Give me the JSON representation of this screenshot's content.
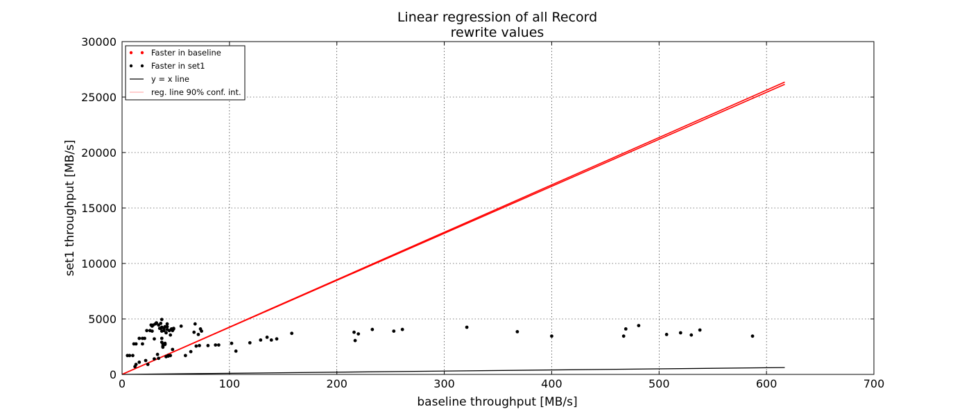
{
  "chart_data": {
    "type": "scatter",
    "title": [
      "Linear regression of all Record",
      "rewrite values"
    ],
    "xlabel": "baseline throughput [MB/s]",
    "ylabel": "set1 throughput [MB/s]",
    "xlim": [
      0,
      700
    ],
    "ylim": [
      0,
      30000
    ],
    "xticks": [
      0,
      100,
      200,
      300,
      400,
      500,
      600,
      700
    ],
    "yticks": [
      0,
      5000,
      10000,
      15000,
      20000,
      25000,
      30000
    ],
    "grid": true,
    "legend_position": "top-left",
    "legend": [
      {
        "label": "Faster in baseline",
        "kind": "points",
        "color": "#ff0000"
      },
      {
        "label": "Faster in set1",
        "kind": "points",
        "color": "#000000"
      },
      {
        "label": "y = x line",
        "kind": "line",
        "color": "#000000"
      },
      {
        "label": "reg. line 90% conf. int.",
        "kind": "line",
        "color": "#ffb0b0"
      }
    ],
    "series": [
      {
        "name": "Faster in baseline",
        "color": "#ff0000",
        "points": []
      },
      {
        "name": "Faster in set1",
        "color": "#000000",
        "points": [
          [
            5,
            1700
          ],
          [
            7,
            1700
          ],
          [
            10,
            1700
          ],
          [
            11,
            2750
          ],
          [
            13,
            2750
          ],
          [
            12,
            700
          ],
          [
            13,
            900
          ],
          [
            16,
            1100
          ],
          [
            16,
            3250
          ],
          [
            19,
            3250
          ],
          [
            19,
            2750
          ],
          [
            21,
            3250
          ],
          [
            22,
            1250
          ],
          [
            23,
            3950
          ],
          [
            24,
            900
          ],
          [
            26,
            3950
          ],
          [
            27,
            4450
          ],
          [
            28,
            4350
          ],
          [
            28,
            3900
          ],
          [
            29,
            4450
          ],
          [
            30,
            3200
          ],
          [
            30,
            1400
          ],
          [
            31,
            4550
          ],
          [
            32,
            4650
          ],
          [
            33,
            1800
          ],
          [
            34,
            1450
          ],
          [
            34,
            4450
          ],
          [
            35,
            4150
          ],
          [
            36,
            4600
          ],
          [
            36,
            4150
          ],
          [
            37,
            4950
          ],
          [
            37,
            4250
          ],
          [
            37,
            3900
          ],
          [
            37,
            3250
          ],
          [
            37,
            2900
          ],
          [
            38,
            2750
          ],
          [
            38,
            2550
          ],
          [
            38,
            2450
          ],
          [
            39,
            3950
          ],
          [
            39,
            4150
          ],
          [
            40,
            4300
          ],
          [
            40,
            2700
          ],
          [
            40,
            2800
          ],
          [
            41,
            1600
          ],
          [
            41,
            3750
          ],
          [
            42,
            4300
          ],
          [
            42,
            4050
          ],
          [
            42,
            4550
          ],
          [
            43,
            1700
          ],
          [
            43,
            1650
          ],
          [
            44,
            3950
          ],
          [
            45,
            1700
          ],
          [
            45,
            3550
          ],
          [
            46,
            4100
          ],
          [
            47,
            2250
          ],
          [
            47,
            3950
          ],
          [
            48,
            4100
          ],
          [
            48,
            4150
          ],
          [
            55,
            4350
          ],
          [
            59,
            1700
          ],
          [
            64,
            2050
          ],
          [
            67,
            3800
          ],
          [
            68,
            4550
          ],
          [
            69,
            2550
          ],
          [
            71,
            3600
          ],
          [
            72,
            2600
          ],
          [
            73,
            4100
          ],
          [
            74,
            3900
          ],
          [
            80,
            2600
          ],
          [
            87,
            2650
          ],
          [
            90,
            2650
          ],
          [
            102,
            2800
          ],
          [
            106,
            2100
          ],
          [
            119,
            2850
          ],
          [
            129,
            3100
          ],
          [
            135,
            3350
          ],
          [
            139,
            3100
          ],
          [
            144,
            3200
          ],
          [
            158,
            3700
          ],
          [
            216,
            3800
          ],
          [
            217,
            3050
          ],
          [
            220,
            3650
          ],
          [
            233,
            4050
          ],
          [
            253,
            3900
          ],
          [
            261,
            4050
          ],
          [
            321,
            4250
          ],
          [
            368,
            3850
          ],
          [
            400,
            3450
          ],
          [
            467,
            3450
          ],
          [
            469,
            4100
          ],
          [
            481,
            4400
          ],
          [
            507,
            3600
          ],
          [
            520,
            3750
          ],
          [
            530,
            3550
          ],
          [
            538,
            4000
          ],
          [
            587,
            3450
          ]
        ]
      }
    ],
    "reference_line": {
      "name": "y = x line",
      "color": "#000000",
      "x": [
        0,
        617
      ],
      "y": [
        0,
        617
      ]
    },
    "regression_band": {
      "name": "reg. line 90% conf. int.",
      "color": "#ff0000",
      "upper": {
        "x": [
          0,
          617
        ],
        "y": [
          0,
          26350
        ]
      },
      "lower": {
        "x": [
          0,
          617
        ],
        "y": [
          0,
          26150
        ]
      }
    }
  }
}
